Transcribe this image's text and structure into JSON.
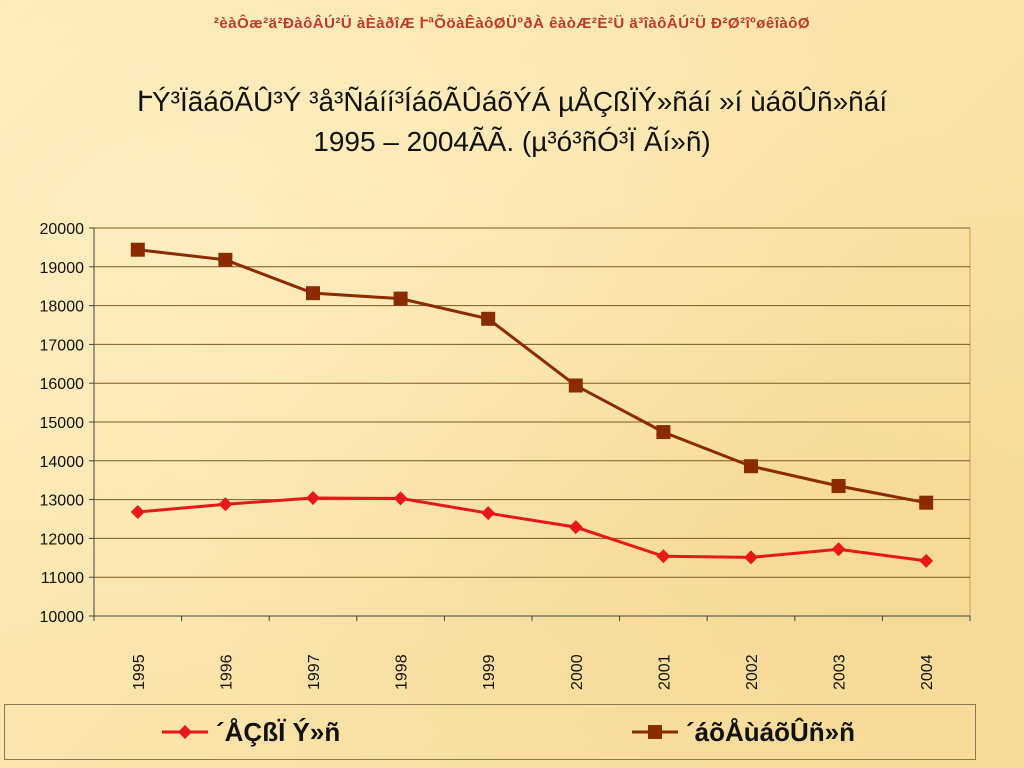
{
  "header": "²èàÔæ²ä²ÐàôÂÚ²Ü àÈàðîÆ ՒªÕöàÊàôØÜºðÀ êàòÆ²È²Ü ä³îàôÂÚ²Ü Ð²Ø²îºøêîàôØ",
  "title_line1": "ՒÝ³ÏãáõÃÛ³Ý ³å³Ñáíí³ÍáõÃÛáõÝÁ µÅÇßÏÝ»ñáí »í ùáõÛñ»ñáí",
  "title_line2": "1995 – 2004ÃÃ. (µ³ó³ñÓ³Ï Ãí»ñ)",
  "colors": {
    "series1": "#e81818",
    "series2": "#8b2b00",
    "grid": "#7a5a20",
    "plot_border": "#c9a04a"
  },
  "chart_data": {
    "type": "line",
    "categories": [
      "1995",
      "1996",
      "1997",
      "1998",
      "1999",
      "2000",
      "2001",
      "2002",
      "2003",
      "2004"
    ],
    "ylim": [
      10000,
      20000
    ],
    "yticks": [
      "10000",
      "11000",
      "12000",
      "13000",
      "14000",
      "15000",
      "16000",
      "17000",
      "18000",
      "19000",
      "20000"
    ],
    "grid": true,
    "legend_position": "bottom",
    "series": [
      {
        "name": "´ÅÇßÏ Ý»ñ",
        "marker": "diamond",
        "values": [
          12680,
          12880,
          13040,
          13030,
          12650,
          12290,
          11540,
          11510,
          11720,
          11420
        ]
      },
      {
        "name": "´áõÅùáõÛñ»ñ",
        "marker": "square",
        "values": [
          19440,
          19180,
          18320,
          18180,
          17660,
          15940,
          14740,
          13860,
          13350,
          12920
        ]
      }
    ]
  }
}
